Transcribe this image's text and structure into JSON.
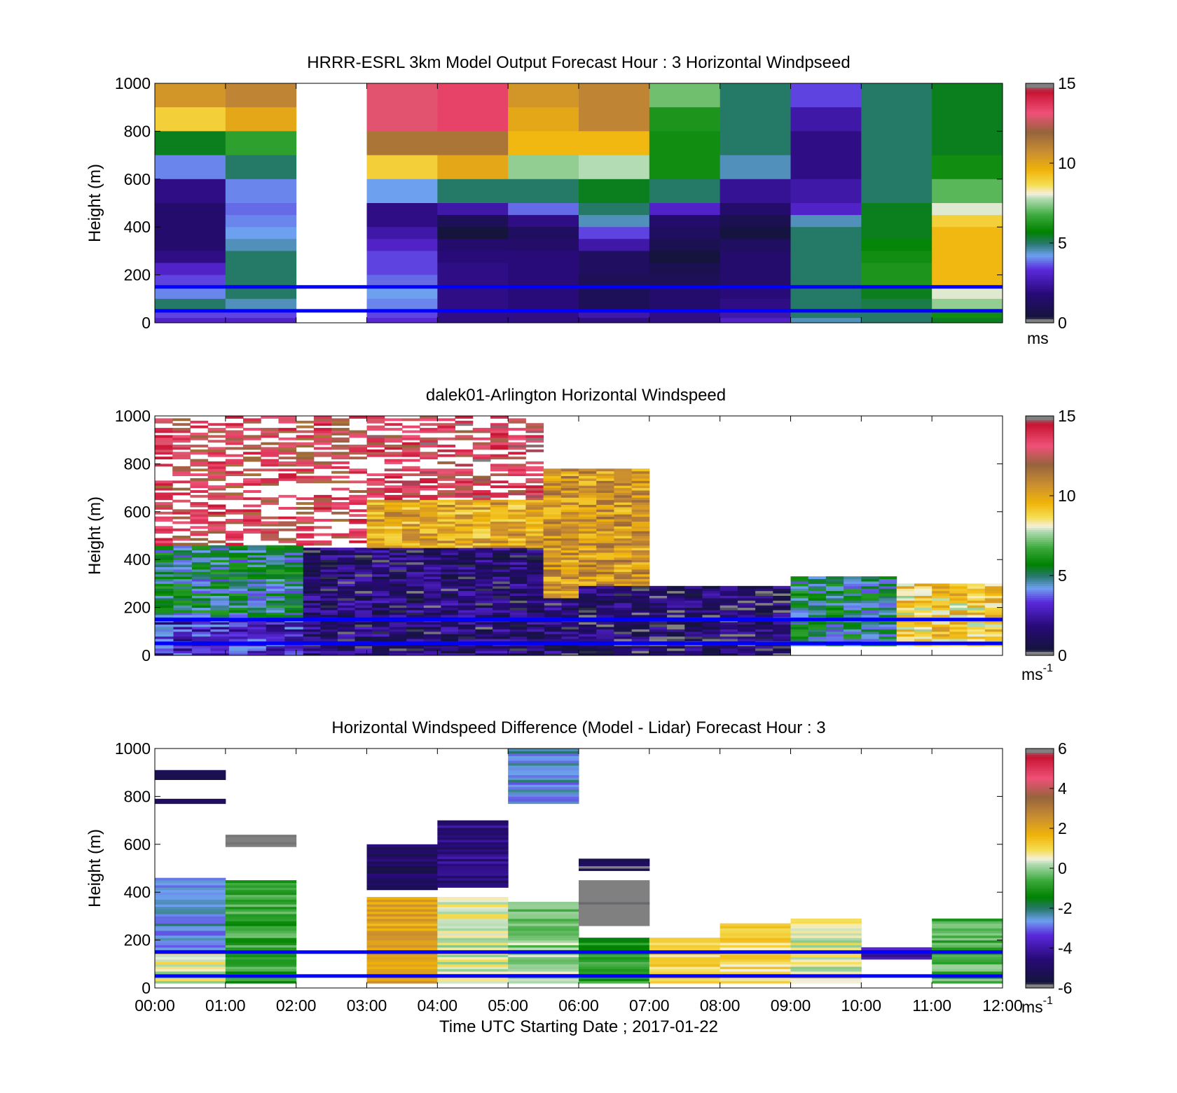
{
  "chart_data": [
    {
      "type": "heatmap",
      "title": "HRRR-ESRL 3km Model Output   Forecast Hour : 3 Horizontal Windpseed",
      "ylabel": "Height (m)",
      "xlabel": "",
      "ylim": [
        0,
        1000
      ],
      "yticks": [
        "0",
        "200",
        "400",
        "600",
        "800",
        "1000"
      ],
      "colorbar": {
        "min": 0,
        "max": 15,
        "ticks": [
          "0",
          "5",
          "10",
          "15"
        ],
        "unit": "ms",
        "unit_exp": ""
      },
      "reference_lines_m": [
        50,
        150
      ],
      "hour_columns": [
        "00:00",
        "01:00",
        "02:00",
        "03:00",
        "04:00",
        "05:00",
        "06:00",
        "07:00",
        "08:00",
        "09:00",
        "10:00",
        "11:00"
      ],
      "cell_rows_top_m": [
        1000,
        900,
        800,
        700,
        600,
        500,
        450,
        400,
        350,
        300,
        250,
        200,
        150,
        100,
        50,
        20
      ],
      "cells_ms": [
        [
          10.5,
          9,
          5.5,
          4,
          2,
          1.5,
          1.5,
          1.5,
          1.5,
          2,
          3,
          3.5,
          4,
          5,
          3.5,
          3
        ],
        [
          11,
          10,
          6.5,
          5,
          4,
          3.8,
          4,
          4.2,
          4.5,
          5,
          5,
          5,
          5,
          4.5,
          3.5,
          3
        ],
        [
          null,
          null,
          null,
          null,
          null,
          null,
          null,
          null,
          null,
          null,
          null,
          null,
          null,
          null,
          null,
          null
        ],
        [
          13,
          13,
          11.5,
          9,
          4.2,
          2,
          2,
          2.5,
          3,
          3.5,
          3.5,
          3.8,
          4.2,
          4,
          3.5,
          3.2
        ],
        [
          13.5,
          13.5,
          11.5,
          10,
          5,
          2.5,
          1,
          0.3,
          1.5,
          1.8,
          2,
          2,
          2,
          2,
          2,
          2
        ],
        [
          10.5,
          10,
          9.5,
          7.5,
          5,
          3.8,
          2,
          1.2,
          1.4,
          1.8,
          1.8,
          1.8,
          1.8,
          1.8,
          2,
          2
        ],
        [
          11,
          11,
          9.5,
          7.8,
          5.5,
          5,
          4.5,
          3.5,
          2.5,
          1.2,
          1.2,
          1,
          1,
          1,
          2.5,
          2
        ],
        [
          7.2,
          6.2,
          6,
          6,
          5,
          3,
          1.5,
          1.2,
          0.8,
          0.3,
          0.8,
          1,
          1.5,
          1.5,
          2,
          2
        ],
        [
          5,
          5,
          5,
          4.5,
          2.2,
          1.5,
          0.8,
          0.4,
          1.2,
          1.5,
          1.5,
          1.5,
          1.8,
          2,
          2.5,
          3
        ],
        [
          3.5,
          2.5,
          2,
          2,
          2.5,
          3,
          4.5,
          5,
          5,
          5,
          5,
          5,
          5,
          5,
          5,
          4.5
        ],
        [
          5,
          5,
          5,
          5,
          5,
          5.5,
          5.5,
          5.5,
          5.8,
          6,
          6.2,
          6.2,
          5.5,
          5.2,
          5,
          5
        ],
        [
          5.5,
          5.5,
          5.5,
          6,
          7,
          8,
          9,
          9.5,
          9.5,
          9.5,
          9.5,
          9.5,
          8,
          7.5,
          6,
          5.5
        ]
      ]
    },
    {
      "type": "heatmap",
      "title": "dalek01-Arlington  Horizontal Windspeed",
      "ylabel": "Height (m)",
      "xlabel": "",
      "ylim": [
        0,
        1000
      ],
      "yticks": [
        "0",
        "200",
        "400",
        "600",
        "800",
        "1000"
      ],
      "colorbar": {
        "min": 0,
        "max": 15,
        "ticks": [
          "0",
          "5",
          "10",
          "15"
        ],
        "unit": "ms",
        "unit_exp": "-1"
      },
      "reference_lines_m": [
        50,
        150
      ],
      "time_range_hours": [
        0,
        12
      ],
      "description_regions": [
        {
          "hours": [
            0,
            2.1
          ],
          "heights_m": [
            0,
            150
          ],
          "ms": 3
        },
        {
          "hours": [
            0,
            2.1
          ],
          "heights_m": [
            150,
            460
          ],
          "ms": 5
        },
        {
          "hours": [
            0,
            3
          ],
          "heights_m": [
            460,
            1000
          ],
          "ms": 13,
          "sparse": true
        },
        {
          "hours": [
            2.1,
            6
          ],
          "heights_m": [
            0,
            450
          ],
          "ms": 1.5
        },
        {
          "hours": [
            3,
            5.5
          ],
          "heights_m": [
            450,
            650
          ],
          "ms": 10
        },
        {
          "hours": [
            3,
            5.5
          ],
          "heights_m": [
            650,
            1000
          ],
          "ms": 13.5,
          "sparse": true
        },
        {
          "hours": [
            5.5,
            7
          ],
          "heights_m": [
            240,
            780
          ],
          "ms": 10.5
        },
        {
          "hours": [
            6,
            9
          ],
          "heights_m": [
            0,
            290
          ],
          "ms": 1.2
        },
        {
          "hours": [
            9,
            10.5
          ],
          "heights_m": [
            40,
            330
          ],
          "ms": 5
        },
        {
          "hours": [
            10.5,
            12
          ],
          "heights_m": [
            40,
            300
          ],
          "ms": 9
        }
      ]
    },
    {
      "type": "heatmap",
      "title": "Horizontal Windspeed Difference (Model - Lidar) Forecast Hour : 3",
      "ylabel": "Height (m)",
      "xlabel": "Time UTC  Starting Date ; 2017-01-22",
      "ylim": [
        0,
        1000
      ],
      "yticks": [
        "0",
        "200",
        "400",
        "600",
        "800",
        "1000"
      ],
      "xticks": [
        "00:00",
        "01:00",
        "02:00",
        "03:00",
        "04:00",
        "05:00",
        "06:00",
        "07:00",
        "08:00",
        "09:00",
        "10:00",
        "11:00",
        "12:00"
      ],
      "colorbar": {
        "min": -6,
        "max": 6,
        "ticks": [
          "-6",
          "-4",
          "-2",
          "0",
          "2",
          "4",
          "6"
        ],
        "unit": "ms",
        "unit_exp": "-1"
      },
      "reference_lines_m": [
        50,
        150
      ],
      "difference_bands": [
        {
          "hour": 0,
          "heights_m": [
            870,
            910
          ],
          "ms": -5.5
        },
        {
          "hour": 0,
          "heights_m": [
            770,
            790
          ],
          "ms": -5
        },
        {
          "hour": 0,
          "heights_m": [
            150,
            460
          ],
          "ms": -2.5
        },
        {
          "hour": 0,
          "heights_m": [
            20,
            150
          ],
          "ms": 0.5
        },
        {
          "hour": 1,
          "heights_m": [
            590,
            640
          ],
          "ms": -6.5
        },
        {
          "hour": 1,
          "heights_m": [
            20,
            450
          ],
          "ms": -0.8
        },
        {
          "hour": 3,
          "heights_m": [
            20,
            380
          ],
          "ms": 2
        },
        {
          "hour": 3,
          "heights_m": [
            410,
            600
          ],
          "ms": -5
        },
        {
          "hour": 4,
          "heights_m": [
            20,
            380
          ],
          "ms": 0.5
        },
        {
          "hour": 4,
          "heights_m": [
            420,
            700
          ],
          "ms": -4.5
        },
        {
          "hour": 5,
          "heights_m": [
            20,
            360
          ],
          "ms": 0
        },
        {
          "hour": 5,
          "heights_m": [
            770,
            1000
          ],
          "ms": -2.5
        },
        {
          "hour": 6,
          "heights_m": [
            20,
            210
          ],
          "ms": -1
        },
        {
          "hour": 6,
          "heights_m": [
            260,
            450
          ],
          "ms": -6.5
        },
        {
          "hour": 6,
          "heights_m": [
            490,
            540
          ],
          "ms": -5.5
        },
        {
          "hour": 7,
          "heights_m": [
            20,
            210
          ],
          "ms": 1
        },
        {
          "hour": 8,
          "heights_m": [
            20,
            270
          ],
          "ms": 1
        },
        {
          "hour": 9,
          "heights_m": [
            20,
            290
          ],
          "ms": 0.5
        },
        {
          "hour": 10,
          "heights_m": [
            120,
            170
          ],
          "ms": -4
        },
        {
          "hour": 11,
          "heights_m": [
            20,
            290
          ],
          "ms": -0.5
        }
      ]
    }
  ]
}
